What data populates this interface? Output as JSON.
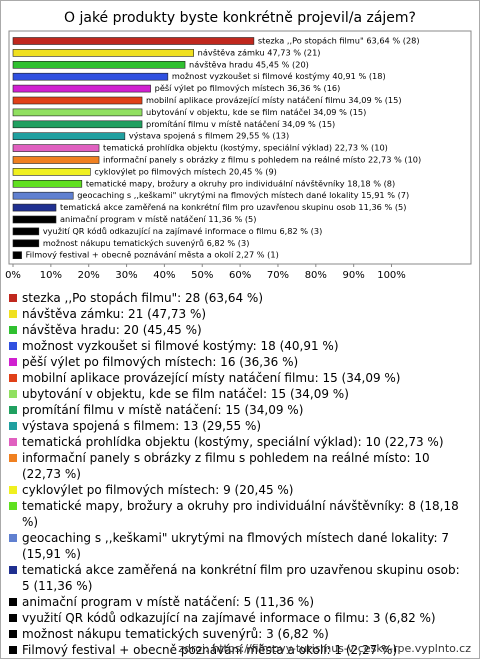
{
  "chart_data": {
    "type": "bar",
    "title": "O jaké produkty byste konkrétně projevil/a zájem?",
    "values": [
      63.64,
      47.73,
      45.45,
      40.91,
      36.36,
      34.09,
      34.09,
      34.09,
      29.55,
      22.73,
      22.73,
      20.45,
      18.18,
      15.91,
      11.36,
      11.36,
      6.82,
      6.82,
      2.27
    ],
    "value_labels": [
      "stezka ,,Po stopách filmu\" 63,64 % (28)",
      "návštěva zámku 47,73 % (21)",
      "návštěva hradu 45,45 % (20)",
      "možnost vyzkoušet si filmové kostýmy 40,91 % (18)",
      "pěší výlet po filmových místech 36,36 % (16)",
      "mobilní aplikace provázející místy natáčení filmu 34,09 % (15)",
      "ubytování v objektu, kde se film natáčel 34,09 % (15)",
      "promítání filmu v místě natáčení 34,09 % (15)",
      "výstava spojená s filmem 29,55 % (13)",
      "tematická prohlídka objektu (kostýmy, speciální výklad) 22,73 % (10)",
      "informační panely s obrázky z filmu s pohledem na reálné místo 22,73 % (10)",
      "cyklovýlet po filmových místech 20,45 % (9)",
      "tematické mapy, brožury a okruhy pro individuální návštěvníky 18,18 % (8)",
      "geocaching s ,,keškami\" ukrytými na flmových místech dané lokality 15,91 % (7)",
      "tematická akce zaměřená na konkrétní film pro uzavřenou skupinu osob 11,36 % (5)",
      "animační program v místě natáčení 11,36 % (5)",
      "využití QR kódů odkazující na zajímavé informace o filmu 6,82 % (3)",
      "možnost nákupu tematických suvenýrů 6,82 % (3)",
      "Filmový festival + obecně poznávání města a okolí 2,27 % (1)"
    ],
    "legend": [
      "stezka ,,Po stopách filmu\": 28 (63,64 %)",
      "návštěva zámku: 21 (47,73 %)",
      "návštěva hradu: 20 (45,45 %)",
      "možnost vyzkoušet si filmové kostýmy: 18 (40,91 %)",
      "pěší výlet po filmových místech: 16 (36,36 %)",
      "mobilní aplikace provázející místy natáčení filmu: 15 (34,09 %)",
      "ubytování v objektu, kde se film natáčel: 15 (34,09 %)",
      "promítání filmu v místě natáčení: 15 (34,09 %)",
      "výstava spojená s filmem: 13 (29,55 %)",
      "tematická prohlídka objektu (kostýmy, speciální výklad): 10 (22,73 %)",
      "informační panely s obrázky z filmu s pohledem na reálné místo: 10 (22,73 %)",
      "cyklovýlet po filmových místech: 9 (20,45 %)",
      "tematické mapy, brožury a okruhy pro individuální návštěvníky: 8 (18,18 %)",
      "geocaching s ,,keškami\" ukrytými na flmových místech dané lokality: 7 (15,91 %)",
      "tematická akce zaměřená na konkrétní film pro uzavřenou skupinu osob: 5 (11,36 %)",
      "animační program v místě natáčení: 5 (11,36 %)",
      "využití QR kódů odkazující na zajímavé informace o filmu: 3 (6,82 %)",
      "možnost nákupu tematických suvenýrů: 3 (6,82 %)",
      "Filmový festival + obecně poznávání města a okolí: 1 (2,27 %)"
    ],
    "colors": [
      "#c0281e",
      "#f0e020",
      "#30c030",
      "#3050e0",
      "#d020d0",
      "#e04018",
      "#90e060",
      "#20a060",
      "#20a0a0",
      "#e060c0",
      "#f08020",
      "#f0f020",
      "#60e020",
      "#6080d0",
      "#203090",
      "#000000",
      "#000000",
      "#000000",
      "#000000"
    ],
    "xlim": [
      0,
      121
    ],
    "xticks": [
      {
        "value": 0,
        "label": "0%"
      },
      {
        "value": 10,
        "label": "10%"
      },
      {
        "value": 20,
        "label": "20%"
      },
      {
        "value": 30,
        "label": "30%"
      },
      {
        "value": 40,
        "label": "40%"
      },
      {
        "value": 50,
        "label": "50%"
      },
      {
        "value": 60,
        "label": "60%"
      },
      {
        "value": 70,
        "label": "70%"
      },
      {
        "value": 80,
        "label": "80%"
      },
      {
        "value": 90,
        "label": "90%"
      },
      {
        "value": 100,
        "label": "100%"
      }
    ],
    "source": "zdroj: https://filmovy-turismus-v-ceske-rpe.vyplnto.cz"
  }
}
